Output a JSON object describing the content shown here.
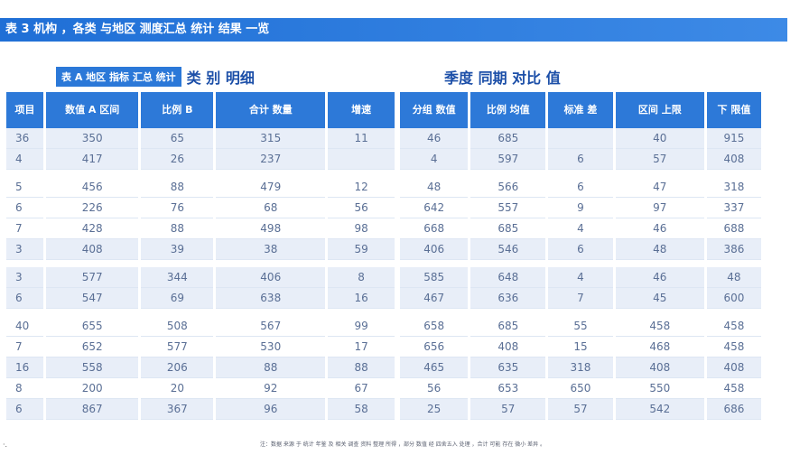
{
  "header": {
    "title": "表 3 机构 ，各类 与地区 测度汇总 统计 结果 一览"
  },
  "left": {
    "tag": "表 A 地区 指标 汇总 统计",
    "caption": "类 别 明细",
    "columns": [
      "项目",
      "数值 A 区间",
      "比例 B",
      "合计 数量",
      "增速"
    ],
    "rows": [
      [
        "36",
        "350",
        "65",
        "315",
        "11"
      ],
      [
        "4",
        "417",
        "26",
        "237",
        ""
      ],
      [
        "5",
        "456",
        "88",
        "479",
        "12"
      ],
      [
        "6",
        "226",
        "76",
        "68",
        "56"
      ],
      [
        "7",
        "428",
        "88",
        "498",
        "98"
      ],
      [
        "3",
        "408",
        "39",
        "38",
        "59"
      ],
      [
        "3",
        "577",
        "344",
        "406",
        "8"
      ],
      [
        "6",
        "547",
        "69",
        "638",
        "16"
      ],
      [
        "40",
        "655",
        "508",
        "567",
        "99"
      ],
      [
        "7",
        "652",
        "577",
        "530",
        "17"
      ],
      [
        "16",
        "558",
        "206",
        "88",
        "88"
      ],
      [
        "8",
        "200",
        "20",
        "92",
        "67"
      ],
      [
        "6",
        "867",
        "367",
        "96",
        "58"
      ]
    ]
  },
  "right": {
    "caption": "季度 同期 对比 值",
    "columns": [
      "分组 数值",
      "比例 均值",
      "标准 差",
      "区间 上限",
      "下 限值"
    ],
    "rows": [
      [
        "46",
        "685",
        "",
        "40",
        "915"
      ],
      [
        "4",
        "597",
        "6",
        "57",
        "408"
      ],
      [
        "48",
        "566",
        "6",
        "47",
        "318"
      ],
      [
        "642",
        "557",
        "9",
        "97",
        "337"
      ],
      [
        "668",
        "685",
        "4",
        "46",
        "688"
      ],
      [
        "406",
        "546",
        "6",
        "48",
        "386"
      ],
      [
        "585",
        "648",
        "4",
        "46",
        "48"
      ],
      [
        "467",
        "636",
        "7",
        "45",
        "600"
      ],
      [
        "658",
        "685",
        "55",
        "458",
        "458"
      ],
      [
        "656",
        "408",
        "15",
        "468",
        "458"
      ],
      [
        "465",
        "635",
        "318",
        "408",
        "408"
      ],
      [
        "56",
        "653",
        "650",
        "550",
        "458"
      ],
      [
        "25",
        "57",
        "57",
        "542",
        "686"
      ]
    ]
  },
  "footer": "注：数据 来源 于 统计 年鉴 及 相关 调查 资料 整理 所得 ，部分 数值 经 四舍五入 处理 ，合计 可能 存在 微小 差异 。"
}
